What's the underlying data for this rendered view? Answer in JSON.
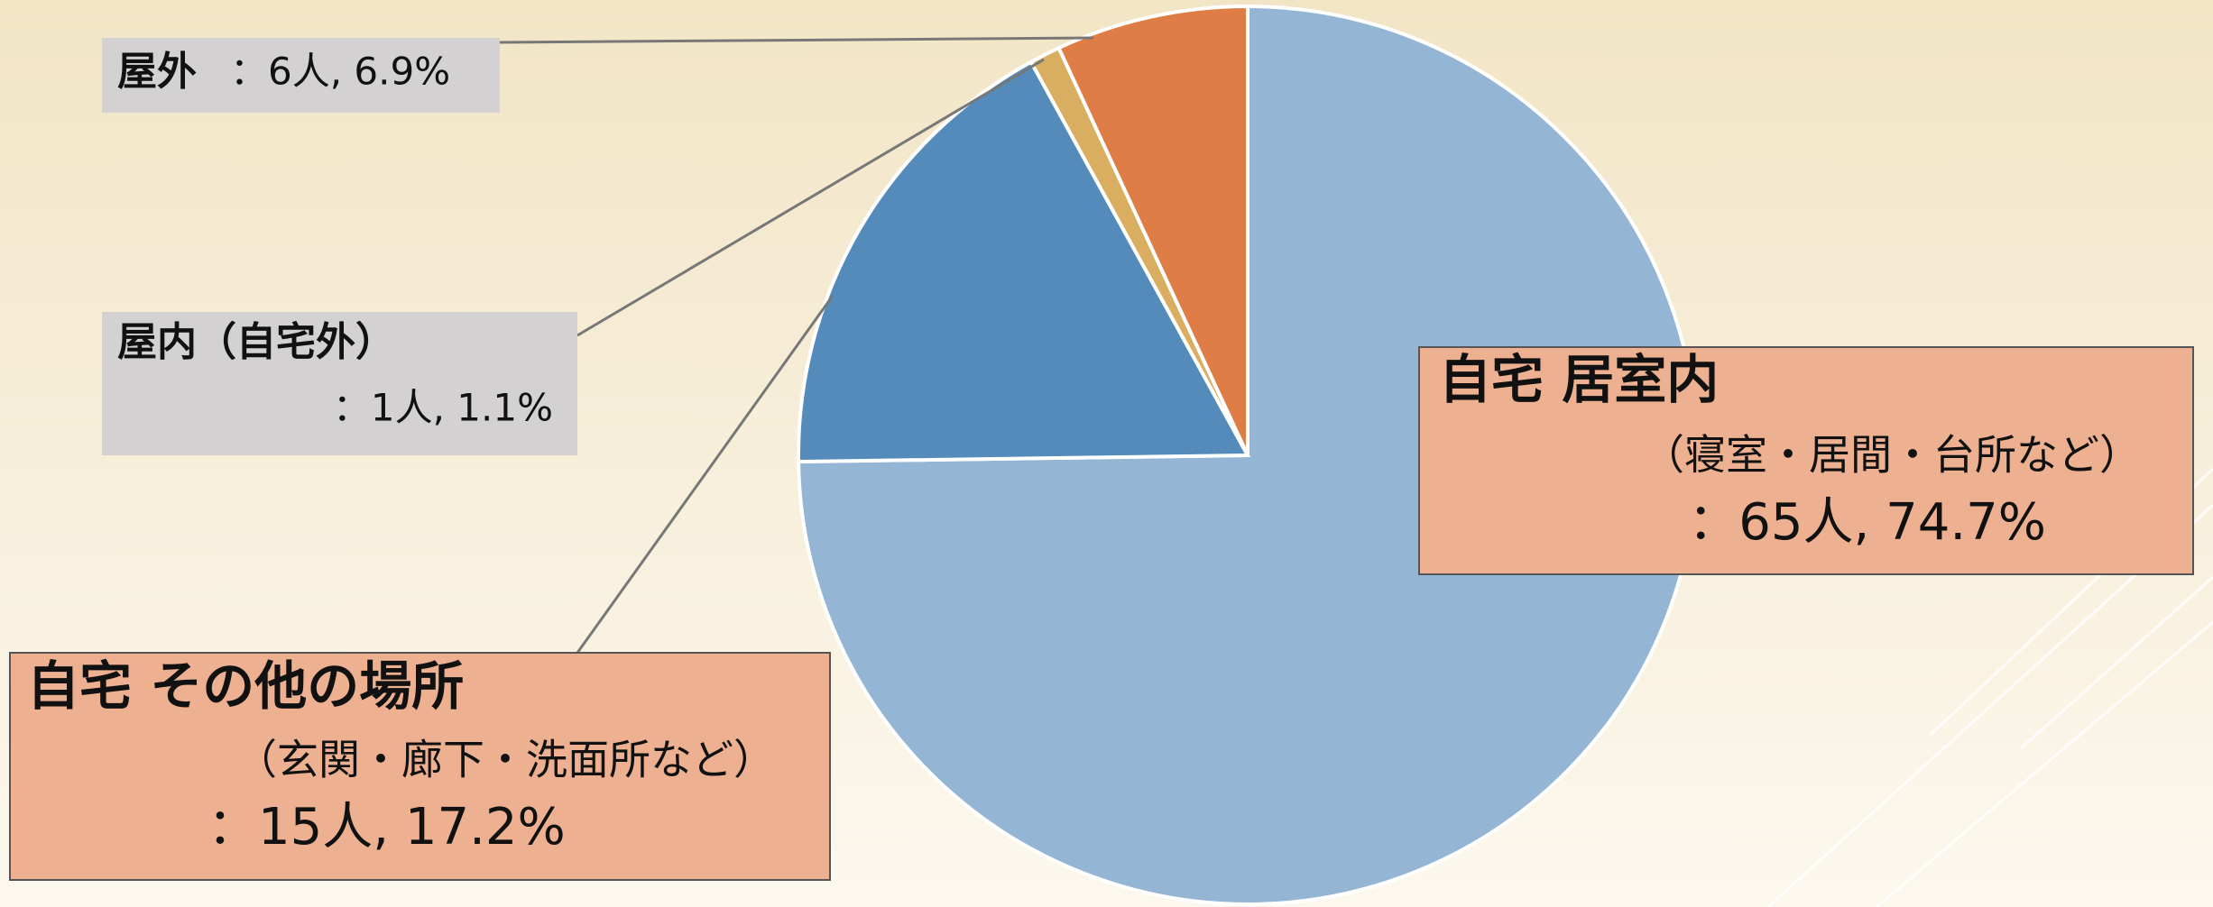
{
  "chart_data": {
    "type": "pie",
    "categories": [
      "自宅 居室内",
      "自宅 その他の場所",
      "屋内（自宅外）",
      "屋外"
    ],
    "descriptions": [
      "（寝室・居間・台所など）",
      "（玄関・廊下・洗面所など）",
      null,
      null
    ],
    "values": [
      74.7,
      17.2,
      1.1,
      6.9
    ],
    "value_labels": [
      "：65人, 74.7%",
      "：15人, 17.2%",
      "：1人, 1.1%",
      "：6人, 6.9%"
    ],
    "colors": [
      "#95b5d4",
      "#548bba",
      "#d9ae60",
      "#de7d45"
    ]
  }
}
